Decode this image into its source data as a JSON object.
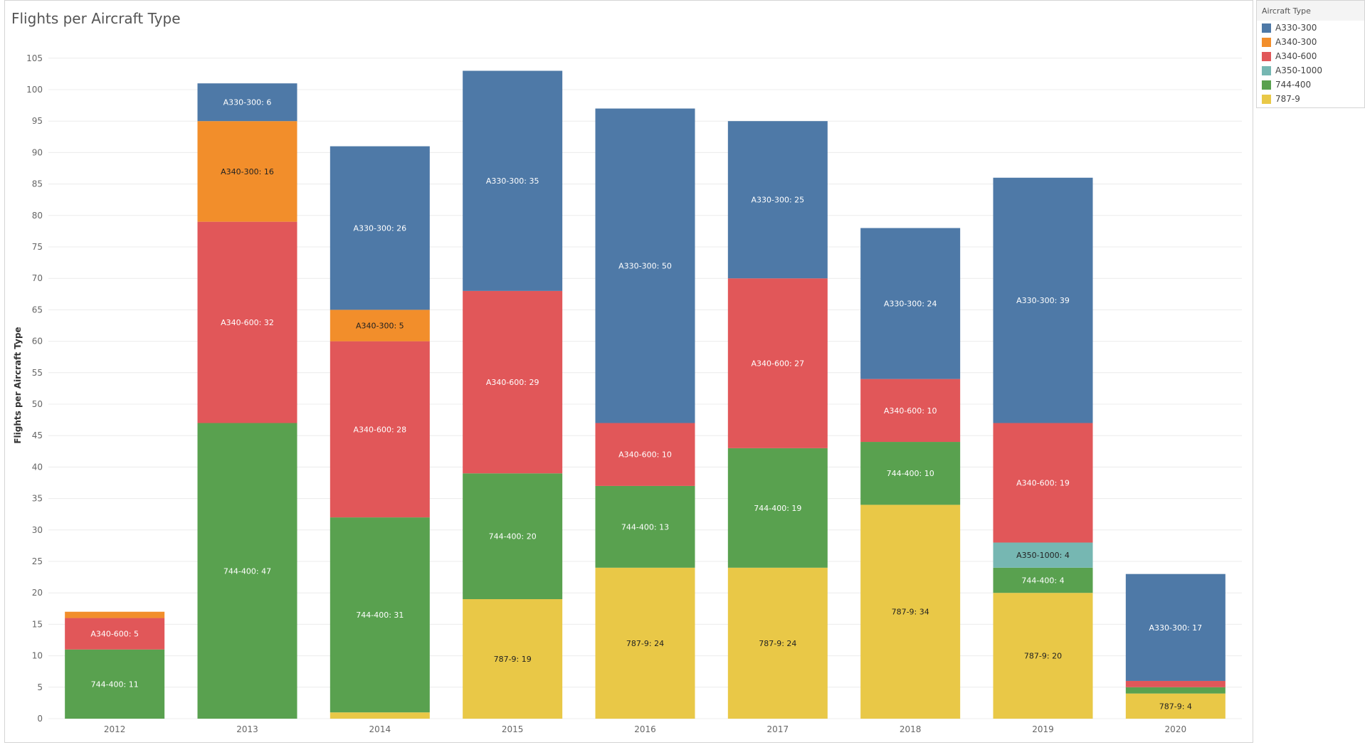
{
  "chart_data": {
    "type": "bar",
    "stacked": true,
    "title": "Flights per Aircraft Type",
    "ylabel": "Flights per Aircraft Type",
    "xlabel": "",
    "ylim": [
      0,
      107
    ],
    "y_ticks": [
      0,
      5,
      10,
      15,
      20,
      25,
      30,
      35,
      40,
      45,
      50,
      55,
      60,
      65,
      70,
      75,
      80,
      85,
      90,
      95,
      100,
      105
    ],
    "categories": [
      "2012",
      "2013",
      "2014",
      "2015",
      "2016",
      "2017",
      "2018",
      "2019",
      "2020"
    ],
    "legend_title": "Aircraft Type",
    "legend_position": "top-right",
    "series": [
      {
        "name": "787-9",
        "color": "#E9C847",
        "label_color": "#222222",
        "values": [
          0,
          0,
          1,
          19,
          24,
          24,
          34,
          20,
          4
        ]
      },
      {
        "name": "744-400",
        "color": "#59A14F",
        "label_color": "#ffffff",
        "values": [
          11,
          47,
          31,
          20,
          13,
          19,
          10,
          4,
          1
        ]
      },
      {
        "name": "A350-1000",
        "color": "#76B7B2",
        "label_color": "#222222",
        "values": [
          0,
          0,
          0,
          0,
          0,
          0,
          0,
          4,
          0
        ]
      },
      {
        "name": "A340-600",
        "color": "#E15759",
        "label_color": "#ffffff",
        "values": [
          5,
          32,
          28,
          29,
          10,
          27,
          10,
          19,
          1
        ]
      },
      {
        "name": "A340-300",
        "color": "#F28E2B",
        "label_color": "#222222",
        "values": [
          1,
          16,
          5,
          0,
          0,
          0,
          0,
          0,
          0
        ]
      },
      {
        "name": "A330-300",
        "color": "#4E79A7",
        "label_color": "#ffffff",
        "values": [
          0,
          6,
          26,
          35,
          50,
          25,
          24,
          39,
          17
        ]
      }
    ],
    "legend_order": [
      "A330-300",
      "A340-300",
      "A340-600",
      "A350-1000",
      "744-400",
      "787-9"
    ],
    "data_labels": [
      {
        "category": "2012",
        "series": "744-400",
        "text": "744-400:  11"
      },
      {
        "category": "2012",
        "series": "A340-600",
        "text": "A340-600:  5"
      },
      {
        "category": "2013",
        "series": "744-400",
        "text": "744-400:  47"
      },
      {
        "category": "2013",
        "series": "A340-600",
        "text": "A340-600:  32"
      },
      {
        "category": "2013",
        "series": "A340-300",
        "text": "A340-300:  16"
      },
      {
        "category": "2013",
        "series": "A330-300",
        "text": "A330-300:  6"
      },
      {
        "category": "2014",
        "series": "744-400",
        "text": "744-400:  31"
      },
      {
        "category": "2014",
        "series": "A340-600",
        "text": "A340-600:  28"
      },
      {
        "category": "2014",
        "series": "A340-300",
        "text": "A340-300:  5"
      },
      {
        "category": "2014",
        "series": "A330-300",
        "text": "A330-300:  26"
      },
      {
        "category": "2015",
        "series": "787-9",
        "text": "787-9:  19"
      },
      {
        "category": "2015",
        "series": "744-400",
        "text": "744-400:  20"
      },
      {
        "category": "2015",
        "series": "A340-600",
        "text": "A340-600:  29"
      },
      {
        "category": "2015",
        "series": "A330-300",
        "text": "A330-300:  35"
      },
      {
        "category": "2016",
        "series": "787-9",
        "text": "787-9:  24"
      },
      {
        "category": "2016",
        "series": "744-400",
        "text": "744-400:  13"
      },
      {
        "category": "2016",
        "series": "A340-600",
        "text": "A340-600:  10"
      },
      {
        "category": "2016",
        "series": "A330-300",
        "text": "A330-300:  50"
      },
      {
        "category": "2017",
        "series": "787-9",
        "text": "787-9:  24"
      },
      {
        "category": "2017",
        "series": "744-400",
        "text": "744-400:  19"
      },
      {
        "category": "2017",
        "series": "A340-600",
        "text": "A340-600:  27"
      },
      {
        "category": "2017",
        "series": "A330-300",
        "text": "A330-300:  25"
      },
      {
        "category": "2018",
        "series": "787-9",
        "text": "787-9:  34"
      },
      {
        "category": "2018",
        "series": "744-400",
        "text": "744-400:  10"
      },
      {
        "category": "2018",
        "series": "A340-600",
        "text": "A340-600:  10"
      },
      {
        "category": "2018",
        "series": "A330-300",
        "text": "A330-300:  24"
      },
      {
        "category": "2019",
        "series": "787-9",
        "text": "787-9:  20"
      },
      {
        "category": "2019",
        "series": "744-400",
        "text": "744-400:  4"
      },
      {
        "category": "2019",
        "series": "A350-1000",
        "text": "A350-1000:  4"
      },
      {
        "category": "2019",
        "series": "A340-600",
        "text": "A340-600:  19"
      },
      {
        "category": "2019",
        "series": "A330-300",
        "text": "A330-300:  39"
      },
      {
        "category": "2020",
        "series": "787-9",
        "text": "787-9:  4"
      },
      {
        "category": "2020",
        "series": "A330-300",
        "text": "A330-300:  17"
      }
    ]
  }
}
